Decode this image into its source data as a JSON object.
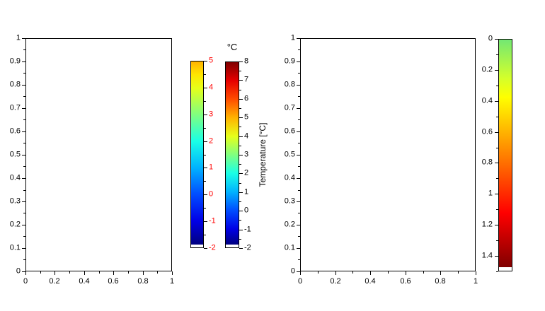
{
  "figure": {
    "background": "#ffffff",
    "axis_color": "#000000",
    "tick_label_color": "#000000",
    "red_label_color": "#ff0000"
  },
  "chart_data": [
    {
      "id": "axes-left",
      "type": "empty-axes",
      "title": "",
      "xlabel": "",
      "ylabel": "",
      "xlim": [
        0,
        1
      ],
      "ylim": [
        0,
        1
      ],
      "xtick_labels": [
        "0",
        "0.2",
        "0.4",
        "0.6",
        "0.8",
        "1"
      ],
      "ytick_labels": [
        "0",
        "0.1",
        "0.2",
        "0.3",
        "0.4",
        "0.5",
        "0.6",
        "0.7",
        "0.8",
        "0.9",
        "1"
      ],
      "x_minor_ticks": [
        0.1,
        0.3,
        0.5,
        0.7,
        0.9
      ],
      "y_minor_ticks": [
        0.05,
        0.15,
        0.25,
        0.35,
        0.45,
        0.55,
        0.65,
        0.75,
        0.85,
        0.95
      ],
      "grid": false,
      "box": true,
      "series": []
    },
    {
      "id": "colorbar-red-labels",
      "type": "colorbar",
      "orientation": "vertical",
      "colormap": "jet",
      "range": [
        -2,
        5
      ],
      "reversed": false,
      "label_side": "right",
      "label_color": "#ff0000",
      "title": "",
      "axis_label": "",
      "tick_labels": [
        "5",
        "4",
        "3",
        "2",
        "1",
        "0",
        "-1",
        "-2"
      ],
      "minor_ticks": [
        4.5,
        3.5,
        2.5,
        1.5,
        0.5,
        -0.5,
        -1.5
      ],
      "below_range_color": "#ffffff",
      "gradient_stops": [
        {
          "pos": 0,
          "color": "#ffb300"
        },
        {
          "pos": 0.071,
          "color": "#ffe600"
        },
        {
          "pos": 0.143,
          "color": "#e6ff1a"
        },
        {
          "pos": 0.286,
          "color": "#80ff80"
        },
        {
          "pos": 0.429,
          "color": "#1affe6"
        },
        {
          "pos": 0.571,
          "color": "#00b3ff"
        },
        {
          "pos": 0.714,
          "color": "#004dff"
        },
        {
          "pos": 0.857,
          "color": "#0000e6"
        },
        {
          "pos": 0.985,
          "color": "#000080"
        },
        {
          "pos": 0.985,
          "color": "#ffffff"
        },
        {
          "pos": 1,
          "color": "#ffffff"
        }
      ]
    },
    {
      "id": "colorbar-temperature",
      "type": "colorbar",
      "orientation": "vertical",
      "colormap": "jet",
      "range": [
        -2,
        8
      ],
      "reversed": false,
      "label_side": "right",
      "label_color": "#000000",
      "title": "°C",
      "axis_label": "Temperature [°C]",
      "tick_labels": [
        "8",
        "7",
        "6",
        "5",
        "4",
        "3",
        "2",
        "1",
        "0",
        "-1",
        "-2"
      ],
      "minor_ticks": [
        7.5,
        6.5,
        5.5,
        4.5,
        3.5,
        2.5,
        1.5,
        0.5,
        -0.5,
        -1.5
      ],
      "below_range_color": "#ffffff",
      "gradient_stops": [
        {
          "pos": 0,
          "color": "#800000"
        },
        {
          "pos": 0.1,
          "color": "#e60000"
        },
        {
          "pos": 0.2,
          "color": "#ff4d00"
        },
        {
          "pos": 0.3,
          "color": "#ffb300"
        },
        {
          "pos": 0.4,
          "color": "#e6ff1a"
        },
        {
          "pos": 0.5,
          "color": "#80ff80"
        },
        {
          "pos": 0.6,
          "color": "#1affe6"
        },
        {
          "pos": 0.7,
          "color": "#00b3ff"
        },
        {
          "pos": 0.8,
          "color": "#004dff"
        },
        {
          "pos": 0.9,
          "color": "#0000e6"
        },
        {
          "pos": 0.985,
          "color": "#000080"
        },
        {
          "pos": 0.985,
          "color": "#ffffff"
        },
        {
          "pos": 1,
          "color": "#ffffff"
        }
      ]
    },
    {
      "id": "axes-right",
      "type": "empty-axes",
      "title": "",
      "xlabel": "",
      "ylabel": "",
      "xlim": [
        0,
        1
      ],
      "ylim": [
        0,
        1
      ],
      "xtick_labels": [
        "0",
        "0.2",
        "0.4",
        "0.6",
        "0.8",
        "1"
      ],
      "ytick_labels": [
        "0",
        "0.1",
        "0.2",
        "0.3",
        "0.4",
        "0.5",
        "0.6",
        "0.7",
        "0.8",
        "0.9",
        "1"
      ],
      "x_minor_ticks": [
        0.1,
        0.3,
        0.5,
        0.7,
        0.9
      ],
      "y_minor_ticks": [
        0.05,
        0.15,
        0.25,
        0.35,
        0.45,
        0.55,
        0.65,
        0.75,
        0.85,
        0.95
      ],
      "grid": false,
      "box": true,
      "series": []
    },
    {
      "id": "colorbar-reversed",
      "type": "colorbar",
      "orientation": "vertical",
      "colormap": "jet-upper-half",
      "range": [
        0,
        1.5
      ],
      "reversed": true,
      "label_side": "left",
      "label_color": "#000000",
      "title": "",
      "axis_label": "",
      "tick_labels": [
        "0",
        "0.2",
        "0.4",
        "0.6",
        "0.8",
        "1",
        "1.2",
        "1.4"
      ],
      "minor_ticks": [
        0.1,
        0.3,
        0.5,
        0.7,
        0.9,
        1.1,
        1.3,
        1.5
      ],
      "below_range_color": "#ffffff",
      "gradient_stops": [
        {
          "pos": 0,
          "color": "#73e873"
        },
        {
          "pos": 0.167,
          "color": "#d4ff2b"
        },
        {
          "pos": 0.25,
          "color": "#ffff00"
        },
        {
          "pos": 0.4,
          "color": "#ffb300"
        },
        {
          "pos": 0.6,
          "color": "#ff4d00"
        },
        {
          "pos": 0.75,
          "color": "#ff0000"
        },
        {
          "pos": 0.985,
          "color": "#800000"
        },
        {
          "pos": 0.985,
          "color": "#ffffff"
        },
        {
          "pos": 1,
          "color": "#ffffff"
        }
      ]
    }
  ]
}
